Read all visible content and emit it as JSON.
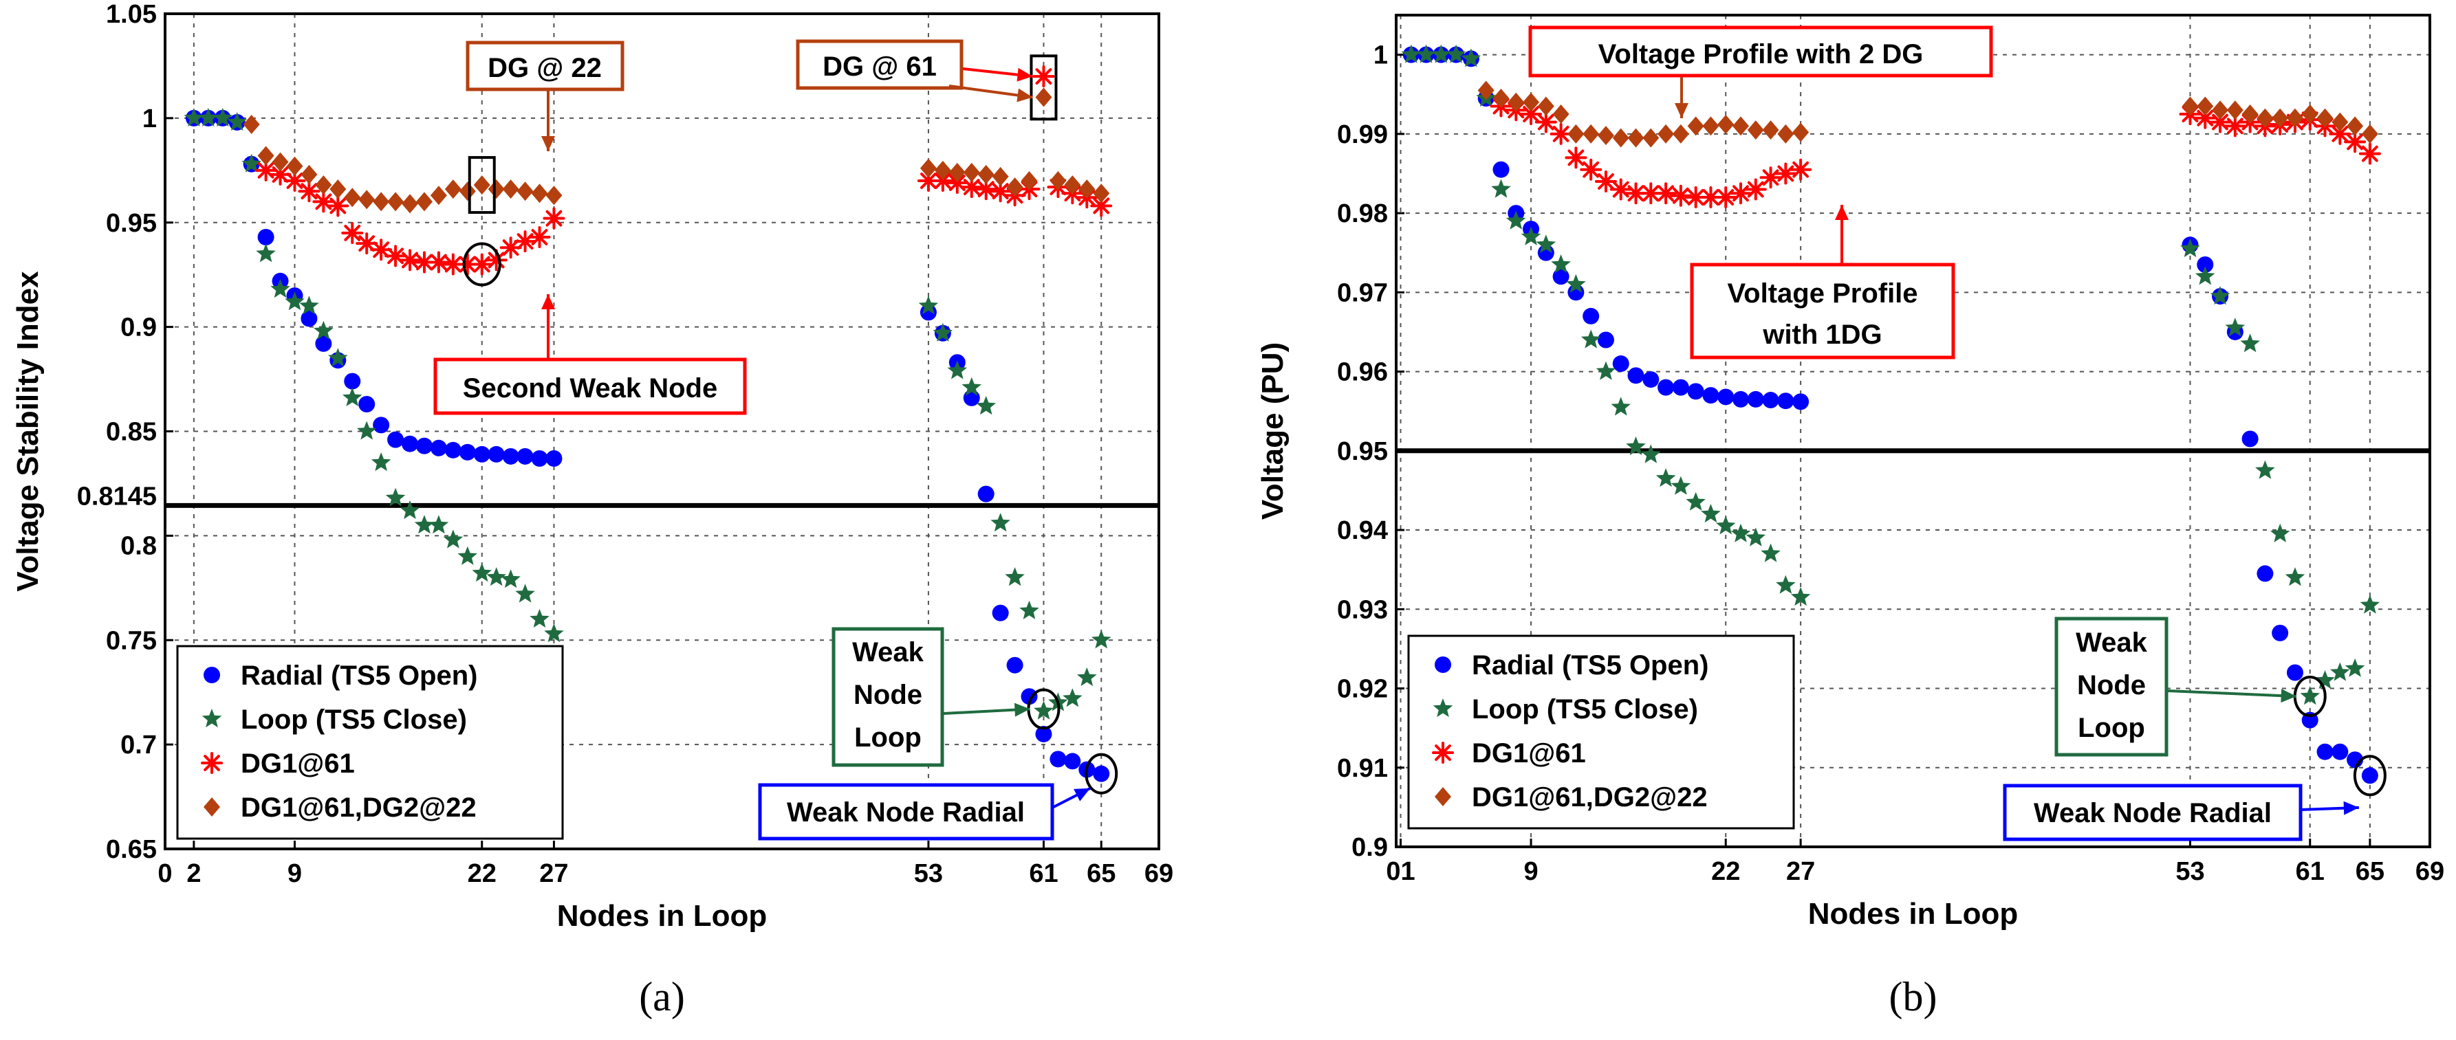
{
  "chart_data": [
    {
      "type": "scatter",
      "panel_label": "(a)",
      "title": "",
      "xlabel": "Nodes in Loop",
      "ylabel": "Voltage Stability Index",
      "xlim": [
        0,
        69
      ],
      "ylim": [
        0.65,
        1.05
      ],
      "x_ticks": [
        "0",
        "2",
        "9",
        "22",
        "27",
        "53",
        "61",
        "65",
        "69"
      ],
      "y_ticks": [
        "0.65",
        "0.7",
        "0.75",
        "0.8",
        "0.8145",
        "0.85",
        "0.9",
        "0.95",
        "1",
        "1.05"
      ],
      "grid": true,
      "threshold": 0.8145,
      "legend_position": "bottom-left",
      "series": [
        {
          "name": "Radial (TS5 Open)",
          "color": "#0000ff",
          "marker": "circle",
          "x": [
            2,
            3,
            4,
            5,
            6,
            7,
            8,
            9,
            10,
            11,
            12,
            13,
            14,
            15,
            16,
            17,
            18,
            19,
            20,
            21,
            22,
            23,
            24,
            25,
            26,
            27,
            53,
            54,
            55,
            56,
            57,
            58,
            59,
            60,
            61,
            62,
            63,
            64,
            65
          ],
          "y": [
            1.0,
            1.0,
            1.0,
            0.998,
            0.978,
            0.943,
            0.922,
            0.915,
            0.904,
            0.892,
            0.884,
            0.874,
            0.863,
            0.853,
            0.846,
            0.844,
            0.843,
            0.842,
            0.841,
            0.84,
            0.839,
            0.839,
            0.838,
            0.838,
            0.837,
            0.837,
            0.907,
            0.897,
            0.883,
            0.866,
            0.82,
            0.763,
            0.738,
            0.723,
            0.705,
            0.693,
            0.692,
            0.688,
            0.686
          ]
        },
        {
          "name": "Loop (TS5 Close)",
          "color": "#1f6b3f",
          "marker": "star",
          "x": [
            2,
            3,
            4,
            5,
            6,
            7,
            8,
            9,
            10,
            11,
            12,
            13,
            14,
            15,
            16,
            17,
            18,
            19,
            20,
            21,
            22,
            23,
            24,
            25,
            26,
            27,
            53,
            54,
            55,
            56,
            57,
            58,
            59,
            60,
            61,
            62,
            63,
            64,
            65
          ],
          "y": [
            1.0,
            1.0,
            1.0,
            0.998,
            0.978,
            0.935,
            0.918,
            0.912,
            0.91,
            0.898,
            0.885,
            0.866,
            0.85,
            0.835,
            0.818,
            0.812,
            0.805,
            0.805,
            0.798,
            0.79,
            0.782,
            0.78,
            0.779,
            0.772,
            0.76,
            0.753,
            0.91,
            0.897,
            0.879,
            0.871,
            0.862,
            0.806,
            0.78,
            0.764,
            0.716,
            0.72,
            0.722,
            0.732,
            0.75
          ]
        },
        {
          "name": "DG1@61",
          "color": "#ff0000",
          "marker": "asterisk",
          "x": [
            7,
            8,
            9,
            10,
            11,
            12,
            13,
            14,
            15,
            16,
            17,
            18,
            19,
            20,
            21,
            22,
            23,
            24,
            25,
            26,
            27,
            53,
            54,
            55,
            56,
            57,
            58,
            59,
            60,
            61,
            62,
            63,
            64,
            65
          ],
          "y": [
            0.975,
            0.973,
            0.97,
            0.965,
            0.96,
            0.958,
            0.945,
            0.94,
            0.937,
            0.934,
            0.932,
            0.931,
            0.931,
            0.93,
            0.93,
            0.93,
            0.932,
            0.938,
            0.941,
            0.943,
            0.952,
            0.97,
            0.97,
            0.969,
            0.967,
            0.966,
            0.965,
            0.963,
            0.966,
            1.02,
            0.967,
            0.964,
            0.962,
            0.958
          ]
        },
        {
          "name": "DG1@61,DG2@22",
          "color": "#b5400f",
          "marker": "diamond",
          "x": [
            6,
            7,
            8,
            9,
            10,
            11,
            12,
            13,
            14,
            15,
            16,
            17,
            18,
            19,
            20,
            21,
            22,
            23,
            24,
            25,
            26,
            27,
            53,
            54,
            55,
            56,
            57,
            58,
            59,
            60,
            61,
            62,
            63,
            64,
            65
          ],
          "y": [
            0.997,
            0.982,
            0.979,
            0.977,
            0.973,
            0.968,
            0.966,
            0.962,
            0.961,
            0.96,
            0.96,
            0.959,
            0.96,
            0.963,
            0.966,
            0.965,
            0.968,
            0.966,
            0.966,
            0.965,
            0.964,
            0.963,
            0.976,
            0.975,
            0.974,
            0.974,
            0.973,
            0.972,
            0.967,
            0.97,
            1.01,
            0.97,
            0.968,
            0.966,
            0.964
          ]
        }
      ],
      "annotations": {
        "dg22": "DG @ 22",
        "dg61": "DG @ 61",
        "second_weak": "Second Weak Node",
        "weak_loop": [
          "Weak",
          "Node",
          "Loop"
        ],
        "weak_radial": "Weak Node Radial"
      }
    },
    {
      "type": "scatter",
      "panel_label": "(b)",
      "title": "",
      "xlabel": "Nodes in Loop",
      "ylabel": "Voltage (PU)",
      "xlim": [
        0,
        69
      ],
      "ylim": [
        0.9,
        1.005
      ],
      "x_ticks": [
        "01",
        "9",
        "22",
        "27",
        "53",
        "61",
        "65",
        "69"
      ],
      "y_ticks": [
        "0.9",
        "0.91",
        "0.92",
        "0.93",
        "0.94",
        "0.95",
        "0.96",
        "0.97",
        "0.98",
        "0.99",
        "1"
      ],
      "grid": true,
      "threshold": 0.95,
      "legend_position": "bottom-left",
      "series": [
        {
          "name": "Radial (TS5 Open)",
          "color": "#0000ff",
          "marker": "circle",
          "x": [
            1,
            2,
            3,
            4,
            5,
            6,
            7,
            8,
            9,
            10,
            11,
            12,
            13,
            14,
            15,
            16,
            17,
            18,
            19,
            20,
            21,
            22,
            23,
            24,
            25,
            26,
            27,
            53,
            54,
            55,
            56,
            57,
            58,
            59,
            60,
            61,
            62,
            63,
            64,
            65
          ],
          "y": [
            1.0,
            1.0,
            1.0,
            1.0,
            0.9995,
            0.9945,
            0.9855,
            0.98,
            0.978,
            0.975,
            0.972,
            0.97,
            0.967,
            0.964,
            0.961,
            0.9595,
            0.959,
            0.958,
            0.958,
            0.9575,
            0.957,
            0.9568,
            0.9565,
            0.9565,
            0.9564,
            0.9563,
            0.9562,
            0.976,
            0.9735,
            0.9695,
            0.965,
            0.9515,
            0.9345,
            0.927,
            0.922,
            0.916,
            0.912,
            0.912,
            0.911,
            0.909
          ]
        },
        {
          "name": "Loop (TS5 Close)",
          "color": "#1f6b3f",
          "marker": "star",
          "x": [
            1,
            2,
            3,
            4,
            5,
            6,
            7,
            8,
            9,
            10,
            11,
            12,
            13,
            14,
            15,
            16,
            17,
            18,
            19,
            20,
            21,
            22,
            23,
            24,
            25,
            26,
            27,
            53,
            54,
            55,
            56,
            57,
            58,
            59,
            60,
            61,
            62,
            63,
            64,
            65
          ],
          "y": [
            1.0,
            1.0,
            1.0,
            1.0,
            0.9995,
            0.9945,
            0.983,
            0.979,
            0.977,
            0.976,
            0.9735,
            0.971,
            0.964,
            0.96,
            0.9555,
            0.9505,
            0.9495,
            0.9465,
            0.9455,
            0.9435,
            0.942,
            0.9405,
            0.9395,
            0.939,
            0.937,
            0.933,
            0.9315,
            0.9755,
            0.972,
            0.9695,
            0.9655,
            0.9635,
            0.9475,
            0.9395,
            0.934,
            0.919,
            0.921,
            0.922,
            0.9225,
            0.9305
          ]
        },
        {
          "name": "DG1@61",
          "color": "#ff0000",
          "marker": "asterisk",
          "x": [
            7,
            8,
            9,
            10,
            11,
            12,
            13,
            14,
            15,
            16,
            17,
            18,
            19,
            20,
            21,
            22,
            23,
            24,
            25,
            26,
            27,
            53,
            54,
            55,
            56,
            57,
            58,
            59,
            60,
            61,
            62,
            63,
            64,
            65
          ],
          "y": [
            0.9935,
            0.993,
            0.9925,
            0.9915,
            0.99,
            0.987,
            0.9855,
            0.984,
            0.983,
            0.9825,
            0.9825,
            0.9825,
            0.9822,
            0.982,
            0.982,
            0.982,
            0.9825,
            0.983,
            0.9845,
            0.985,
            0.9855,
            0.9925,
            0.992,
            0.9915,
            0.991,
            0.9915,
            0.991,
            0.9912,
            0.9915,
            0.9918,
            0.991,
            0.99,
            0.989,
            0.9875
          ]
        },
        {
          "name": "DG1@61,DG2@22",
          "color": "#b5400f",
          "marker": "diamond",
          "x": [
            6,
            7,
            8,
            9,
            10,
            11,
            12,
            13,
            14,
            15,
            16,
            17,
            18,
            19,
            20,
            21,
            22,
            23,
            24,
            25,
            26,
            27,
            53,
            54,
            55,
            56,
            57,
            58,
            59,
            60,
            61,
            62,
            63,
            64,
            65
          ],
          "y": [
            0.9955,
            0.9945,
            0.994,
            0.994,
            0.9935,
            0.9925,
            0.99,
            0.99,
            0.9898,
            0.9895,
            0.9895,
            0.9895,
            0.99,
            0.99,
            0.991,
            0.991,
            0.9912,
            0.991,
            0.9905,
            0.9905,
            0.99,
            0.9902,
            0.9935,
            0.9935,
            0.993,
            0.993,
            0.9925,
            0.992,
            0.992,
            0.992,
            0.9925,
            0.992,
            0.9915,
            0.991,
            0.99
          ]
        }
      ],
      "annotations": {
        "profile_2dg": "Voltage Profile with 2 DG",
        "profile_1dg": [
          "Voltage Profile",
          "with 1DG"
        ],
        "weak_loop": [
          "Weak",
          "Node",
          "Loop"
        ],
        "weak_radial": "Weak Node Radial"
      }
    }
  ]
}
